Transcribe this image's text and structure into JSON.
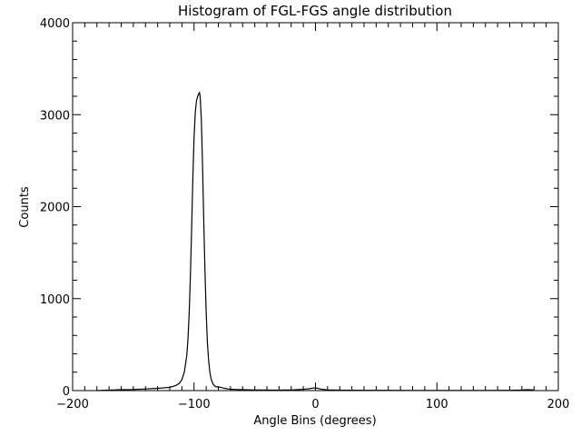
{
  "chart_data": {
    "type": "line",
    "title": "Histogram of FGL-FGS angle distribution",
    "xlabel": "Angle Bins (degrees)",
    "ylabel": "Counts",
    "xlim": [
      -200,
      200
    ],
    "ylim": [
      0,
      4000
    ],
    "x_ticks": [
      -200,
      -100,
      0,
      100,
      200
    ],
    "y_ticks": [
      0,
      1000,
      2000,
      3000,
      4000
    ],
    "x_minor_step": 10,
    "y_minor_step": 200,
    "grid": false,
    "line_color": "#000000",
    "series": [
      {
        "name": "FGL-FGS angle",
        "x": [
          -180,
          -170,
          -160,
          -150,
          -140,
          -130,
          -120,
          -115,
          -112,
          -110,
          -108,
          -106,
          -105,
          -104,
          -103,
          -102,
          -101,
          -100,
          -99,
          -98,
          -97,
          -96,
          -95.5,
          -95,
          -94,
          -93,
          -92,
          -91,
          -90,
          -89,
          -88,
          -87,
          -86,
          -85,
          -84,
          -83,
          -82,
          -80,
          -78,
          -76,
          -74,
          -72,
          -70,
          -65,
          -60,
          -55,
          -50,
          -45,
          -40,
          -35,
          -30,
          -25,
          -20,
          -15,
          -10,
          -5,
          -2,
          0,
          2,
          5,
          10,
          20,
          30,
          40,
          60,
          80,
          100,
          120,
          140,
          160,
          170,
          175,
          180
        ],
        "y": [
          0,
          5,
          10,
          12,
          18,
          25,
          35,
          55,
          80,
          120,
          200,
          380,
          560,
          840,
          1250,
          1750,
          2300,
          2750,
          3020,
          3150,
          3200,
          3230,
          3240,
          3200,
          2950,
          2450,
          1850,
          1300,
          850,
          520,
          330,
          200,
          130,
          90,
          65,
          50,
          42,
          38,
          35,
          28,
          22,
          18,
          15,
          12,
          10,
          8,
          7,
          6,
          6,
          5,
          5,
          6,
          7,
          10,
          14,
          20,
          28,
          30,
          24,
          14,
          8,
          5,
          4,
          3,
          3,
          2,
          2,
          2,
          2,
          3,
          6,
          10,
          6
        ]
      }
    ]
  }
}
